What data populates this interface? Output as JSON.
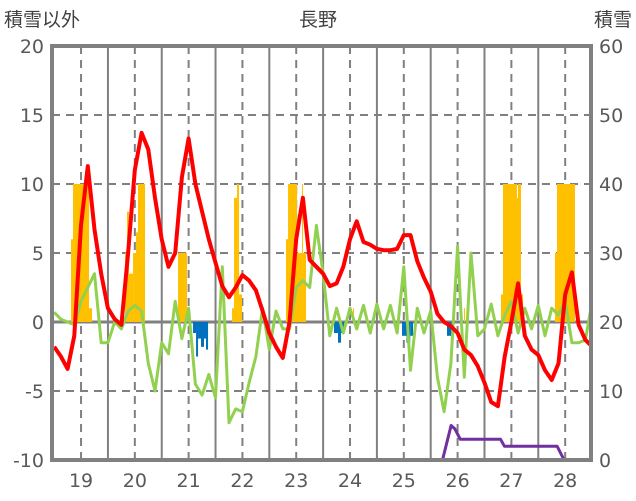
{
  "chart_data": {
    "type": "line",
    "title": "長野",
    "ylabel_left": "積雪以外",
    "ylabel_right": "積雪",
    "xlim": [
      18.46,
      28.48
    ],
    "ylim_left": [
      -10,
      20
    ],
    "ylim_right": [
      0,
      60
    ],
    "x_ticks": [
      19,
      20,
      21,
      22,
      23,
      24,
      25,
      26,
      27,
      28
    ],
    "x_tick_labels": [
      "19",
      "20",
      "21",
      "22",
      "23",
      "24",
      "25",
      "26",
      "27",
      "28"
    ],
    "y_ticks_left": [
      20,
      15,
      10,
      5,
      0,
      -5,
      -10
    ],
    "y_tick_labels_left": [
      "20",
      "15",
      "10",
      "5",
      "0",
      "-5",
      "-10"
    ],
    "y_ticks_right": [
      60,
      50,
      40,
      30,
      20,
      10,
      0
    ],
    "y_tick_labels_right": [
      "60",
      "50",
      "40",
      "30",
      "20",
      "10",
      "0"
    ],
    "grid": true,
    "colors": {
      "red": "#FF0000",
      "green": "#92D050",
      "purple": "#7030A0",
      "orange": "#FFC000",
      "blue": "#0070C0",
      "axis": "#808080",
      "text": "#595959"
    },
    "series": [
      {
        "name": "red",
        "axis": "left",
        "color": "#FF0000",
        "x_start": 18.5,
        "step": 0.125,
        "values": [
          -1.8,
          -2.5,
          -3.4,
          -1,
          7,
          11.3,
          6.7,
          3.5,
          1,
          0.2,
          -0.2,
          5,
          11,
          13.7,
          12.5,
          9,
          6,
          4,
          5,
          10.5,
          13.3,
          10,
          8,
          6,
          4.3,
          2.6,
          1.8,
          2.5,
          3.4,
          3,
          2.3,
          0.8,
          -0.8,
          -1.8,
          -2.6,
          0,
          6,
          9,
          4.5,
          4,
          3.5,
          2.6,
          2.8,
          4,
          6,
          7.3,
          5.8,
          5.6,
          5.3,
          5.2,
          5.2,
          5.3,
          6.3,
          6.3,
          4.4,
          3.2,
          2.2,
          0.6,
          0,
          -0.3,
          -0.8,
          -2,
          -2.4,
          -3.2,
          -4.4,
          -5.8,
          -6.1,
          -2.5,
          0,
          2.8,
          -1,
          -2,
          -2.4,
          -3.5,
          -4.2,
          -3,
          2,
          3.6,
          -0.2,
          -1.3,
          -1.7
        ]
      },
      {
        "name": "green",
        "axis": "left",
        "color": "#92D050",
        "x_start": 18.5,
        "step": 0.125,
        "values": [
          0.7,
          0.2,
          0,
          -0.2,
          1.5,
          2.5,
          3.5,
          -1.5,
          -1.5,
          0,
          -0.5,
          0.8,
          1.2,
          0.8,
          -3,
          -5,
          -1.5,
          -2.3,
          1.5,
          -1.2,
          1,
          -4.5,
          -5.3,
          -3.8,
          -5.5,
          4,
          -7.3,
          -6.3,
          -6.5,
          -4.4,
          -2.5,
          1,
          -2,
          0.8,
          -0.5,
          -0.5,
          2.5,
          3,
          2.5,
          7,
          3.5,
          -1,
          1,
          -0.8,
          1,
          -0.5,
          1.2,
          -0.8,
          1.3,
          -0.5,
          1.2,
          -0.8,
          4,
          -3.5,
          1,
          -0.8,
          0.8,
          -4,
          -6.5,
          -3,
          5.5,
          -4,
          5,
          -1,
          -0.5,
          1.3,
          -1,
          0.5,
          1.5,
          -0.8,
          1,
          -0.5,
          1.2,
          -1,
          1,
          0.5,
          1.5,
          -1.5,
          -1.5,
          -1.3,
          1
        ]
      },
      {
        "name": "purple",
        "axis": "right",
        "color": "#7030A0",
        "points": [
          [
            18.46,
            0
          ],
          [
            25.72,
            0
          ],
          [
            25.88,
            5
          ],
          [
            25.95,
            4.5
          ],
          [
            26.05,
            3
          ],
          [
            26.8,
            3
          ],
          [
            26.87,
            2
          ],
          [
            27.85,
            2
          ],
          [
            27.98,
            0
          ],
          [
            28.48,
            0
          ]
        ]
      },
      {
        "name": "orange-bars",
        "axis": "left",
        "type": "bar",
        "color": "#FFC000",
        "bars": [
          [
            18.814,
            18.851,
            6
          ],
          [
            18.851,
            19.149,
            10
          ],
          [
            19.149,
            19.204,
            1
          ],
          [
            19.818,
            19.855,
            5
          ],
          [
            19.855,
            19.892,
            8
          ],
          [
            19.892,
            19.967,
            3.5
          ],
          [
            19.967,
            20.022,
            5
          ],
          [
            20.022,
            20.059,
            6.5
          ],
          [
            20.059,
            20.19,
            10
          ],
          [
            20.803,
            20.97,
            5
          ],
          [
            21.807,
            21.844,
            1
          ],
          [
            21.844,
            21.9,
            9
          ],
          [
            21.9,
            21.937,
            10
          ],
          [
            21.937,
            21.993,
            2
          ],
          [
            22.81,
            22.848,
            6
          ],
          [
            22.848,
            23.015,
            10
          ],
          [
            23.015,
            23.108,
            5
          ],
          [
            23.108,
            23.126,
            10
          ],
          [
            23.126,
            23.182,
            5
          ],
          [
            24.056,
            24.075,
            1
          ],
          [
            26.119,
            26.138,
            1
          ],
          [
            26.807,
            26.844,
            2
          ],
          [
            26.844,
            27.104,
            10
          ],
          [
            27.104,
            27.123,
            9
          ],
          [
            27.123,
            27.178,
            10
          ],
          [
            27.178,
            27.216,
            2
          ],
          [
            27.81,
            27.848,
            5
          ],
          [
            27.848,
            28.182,
            10
          ]
        ]
      },
      {
        "name": "blue-bars",
        "axis": "left",
        "type": "bar",
        "color": "#0070C0",
        "bars": [
          [
            21.082,
            21.138,
            -0.8
          ],
          [
            21.138,
            21.175,
            -2.5
          ],
          [
            21.175,
            21.23,
            -1.2
          ],
          [
            21.23,
            21.286,
            -1.8
          ],
          [
            21.286,
            21.323,
            -1.2
          ],
          [
            21.323,
            21.361,
            -2
          ],
          [
            23.703,
            23.777,
            -0.8
          ],
          [
            23.777,
            23.833,
            -1.5
          ],
          [
            23.833,
            23.889,
            -0.8
          ],
          [
            24.967,
            25.05,
            -1
          ],
          [
            25.05,
            25.12,
            -1.5
          ],
          [
            25.12,
            25.171,
            -1
          ],
          [
            25.803,
            25.914,
            -1
          ]
        ]
      }
    ]
  }
}
